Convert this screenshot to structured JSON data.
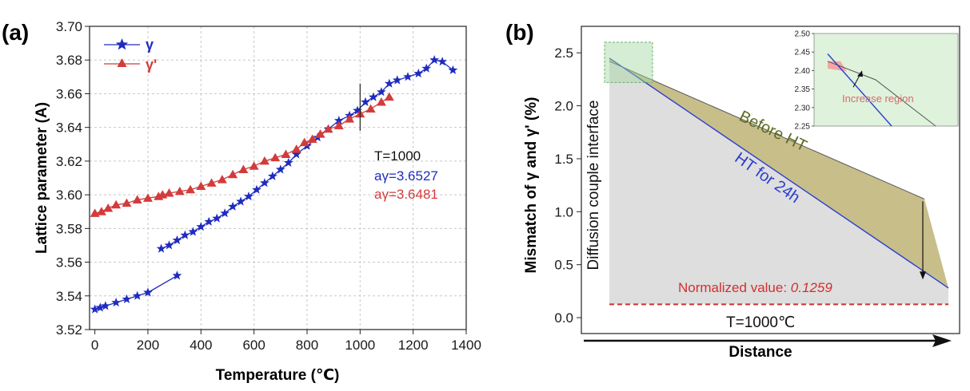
{
  "panel_a_label": "(a)",
  "panel_b_label": "(b)",
  "chart_data": [
    {
      "type": "line",
      "panel": "(a)",
      "xlabel": "Temperature (℃)",
      "ylabel": "Lattice parameter (A)",
      "xlim": [
        -20,
        1400
      ],
      "ylim": [
        3.52,
        3.7
      ],
      "xticks": [
        0,
        200,
        400,
        600,
        800,
        1000,
        1200,
        1400
      ],
      "yticks": [
        3.52,
        3.54,
        3.56,
        3.58,
        3.6,
        3.62,
        3.64,
        3.66,
        3.68,
        3.7
      ],
      "grid": "dashed",
      "legend_position": "top-left",
      "series": [
        {
          "name": "γ",
          "color": "#1f2bbf",
          "marker": "star",
          "segments": [
            [
              [
                0,
                3.532
              ],
              [
                20,
                3.533
              ],
              [
                40,
                3.534
              ],
              [
                80,
                3.536
              ],
              [
                120,
                3.538
              ],
              [
                160,
                3.54
              ],
              [
                200,
                3.542
              ],
              [
                310,
                3.552
              ]
            ],
            [
              [
                250,
                3.568
              ],
              [
                280,
                3.57
              ],
              [
                310,
                3.573
              ],
              [
                340,
                3.576
              ],
              [
                370,
                3.578
              ],
              [
                400,
                3.581
              ],
              [
                430,
                3.584
              ],
              [
                460,
                3.586
              ],
              [
                490,
                3.589
              ],
              [
                520,
                3.593
              ],
              [
                550,
                3.596
              ],
              [
                580,
                3.599
              ],
              [
                610,
                3.603
              ],
              [
                640,
                3.607
              ],
              [
                670,
                3.611
              ],
              [
                700,
                3.615
              ],
              [
                730,
                3.619
              ],
              [
                760,
                3.624
              ],
              [
                800,
                3.629
              ],
              [
                840,
                3.634
              ],
              [
                880,
                3.639
              ],
              [
                920,
                3.644
              ],
              [
                960,
                3.647
              ],
              [
                990,
                3.65
              ],
              [
                1020,
                3.655
              ],
              [
                1050,
                3.658
              ],
              [
                1080,
                3.661
              ],
              [
                1110,
                3.666
              ],
              [
                1140,
                3.668
              ],
              [
                1180,
                3.67
              ],
              [
                1220,
                3.672
              ],
              [
                1250,
                3.675
              ],
              [
                1280,
                3.68
              ],
              [
                1310,
                3.679
              ],
              [
                1350,
                3.674
              ]
            ]
          ]
        },
        {
          "name": "γʹ",
          "color": "#d33b3b",
          "marker": "triangle",
          "segments": [
            [
              [
                0,
                3.589
              ],
              [
                25,
                3.59
              ],
              [
                50,
                3.592
              ],
              [
                80,
                3.594
              ],
              [
                120,
                3.595
              ],
              [
                160,
                3.597
              ],
              [
                200,
                3.598
              ],
              [
                240,
                3.599
              ],
              [
                255,
                3.6
              ],
              [
                280,
                3.601
              ],
              [
                320,
                3.602
              ],
              [
                360,
                3.603
              ],
              [
                400,
                3.605
              ],
              [
                440,
                3.607
              ],
              [
                480,
                3.609
              ],
              [
                520,
                3.612
              ],
              [
                560,
                3.615
              ],
              [
                600,
                3.617
              ],
              [
                640,
                3.62
              ],
              [
                680,
                3.622
              ],
              [
                720,
                3.624
              ],
              [
                760,
                3.627
              ],
              [
                790,
                3.631
              ],
              [
                820,
                3.633
              ],
              [
                850,
                3.636
              ],
              [
                880,
                3.639
              ],
              [
                920,
                3.641
              ],
              [
                960,
                3.645
              ],
              [
                1000,
                3.648
              ],
              [
                1040,
                3.651
              ],
              [
                1080,
                3.655
              ],
              [
                1110,
                3.658
              ]
            ]
          ]
        }
      ],
      "annotation": {
        "title": "T=1000",
        "gamma_line": "aγ=3.6527",
        "gamma_prime_line": "aγ=3.6481"
      },
      "vertical_marker_x": 1000
    },
    {
      "type": "area",
      "panel": "(b)",
      "xlabel": "Distance",
      "ylabel": "Mismatch of γ and γʹ (%)",
      "ylim": [
        -0.15,
        2.75
      ],
      "yticks": [
        0.0,
        0.5,
        1.0,
        1.5,
        2.0,
        2.5
      ],
      "series": [
        {
          "name": "Before HT",
          "color": "#555555",
          "fill": "#c8be8a",
          "y_start": 2.42,
          "y_end": 1.12
        },
        {
          "name": "HT for 24h",
          "color": "#2a3fcf",
          "y_start": 2.45,
          "y_end": 0.28
        }
      ],
      "reference_line": {
        "label": "Normalized value: ",
        "value": "0.1259",
        "y": 0.1259,
        "color": "#d32f2f"
      },
      "labels": {
        "before_ht": "Before HT",
        "ht_24h": "HT for 24h",
        "interface": "Diffusion couple interface",
        "temperature": "T=1000℃"
      },
      "inset": {
        "ylim": [
          2.25,
          2.5
        ],
        "yticks": [
          2.25,
          2.3,
          2.35,
          2.4,
          2.45,
          2.5
        ],
        "label": "Increase region",
        "fill": "#dff2dc",
        "highlight": "#f4a6a6"
      }
    }
  ]
}
